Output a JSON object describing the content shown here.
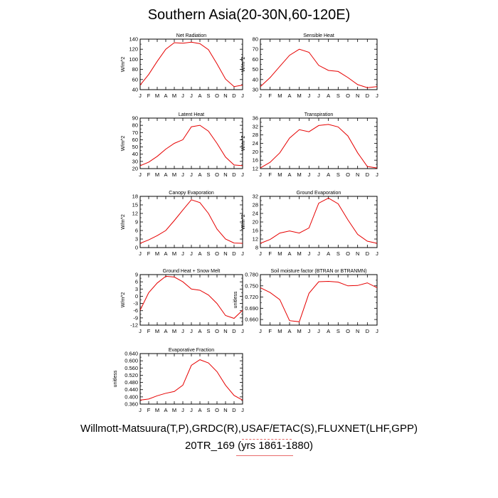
{
  "title": "Southern Asia(20-30N,60-120E)",
  "footer": {
    "line1": "Willmott-Matsuura(T,P),GRDC(R),USAF/ETAC(S),FLUXNET(LHF,GPP)",
    "line2": "20TR_169 (yrs 1861-1880)"
  },
  "colors": {
    "line": "#e60000",
    "axis": "#000000"
  },
  "chart_data": [
    {
      "type": "line",
      "title": "Net Radiation",
      "ylabel": "W/m^2",
      "categories": [
        "J",
        "F",
        "M",
        "A",
        "M",
        "J",
        "J",
        "A",
        "S",
        "O",
        "N",
        "D",
        "J"
      ],
      "ylim": [
        40,
        140
      ],
      "yticks": [
        40,
        60,
        80,
        100,
        120,
        140
      ],
      "values": [
        49,
        70,
        96,
        120,
        133,
        132,
        134,
        131,
        119,
        91,
        61,
        46,
        49
      ]
    },
    {
      "type": "line",
      "title": "Sensible Heat",
      "ylabel": "W/m^2",
      "categories": [
        "J",
        "F",
        "M",
        "A",
        "M",
        "J",
        "J",
        "A",
        "S",
        "O",
        "N",
        "D",
        "J"
      ],
      "ylim": [
        30,
        80
      ],
      "yticks": [
        30,
        40,
        50,
        60,
        70,
        80
      ],
      "values": [
        33,
        42,
        53,
        64,
        70,
        67,
        54,
        49,
        48,
        42,
        35,
        32,
        33
      ]
    },
    {
      "type": "line",
      "title": "Latent Heat",
      "ylabel": "W/m^2",
      "categories": [
        "J",
        "F",
        "M",
        "A",
        "M",
        "J",
        "J",
        "A",
        "S",
        "O",
        "N",
        "D",
        "J"
      ],
      "ylim": [
        20,
        90
      ],
      "yticks": [
        20,
        30,
        40,
        50,
        60,
        70,
        80,
        90
      ],
      "values": [
        24,
        29,
        37,
        47,
        55,
        60,
        78,
        80,
        72,
        55,
        36,
        25,
        24
      ]
    },
    {
      "type": "line",
      "title": "Transpiration",
      "ylabel": "W/m^2",
      "categories": [
        "J",
        "F",
        "M",
        "A",
        "M",
        "J",
        "J",
        "A",
        "S",
        "O",
        "N",
        "D",
        "J"
      ],
      "ylim": [
        12,
        36
      ],
      "yticks": [
        12,
        16,
        20,
        24,
        28,
        32,
        36
      ],
      "values": [
        12.3,
        15,
        19.5,
        26.5,
        30.5,
        29.5,
        32.5,
        33,
        31.8,
        27.5,
        19.5,
        13,
        12.3
      ]
    },
    {
      "type": "line",
      "title": "Canopy Evaporation",
      "ylabel": "W/m^2",
      "categories": [
        "J",
        "F",
        "M",
        "A",
        "M",
        "J",
        "J",
        "A",
        "S",
        "O",
        "N",
        "D",
        "J"
      ],
      "ylim": [
        0,
        18
      ],
      "yticks": [
        0,
        3,
        6,
        9,
        12,
        15,
        18
      ],
      "values": [
        1.5,
        2.7,
        4.2,
        6,
        9.5,
        13.2,
        16.8,
        15.8,
        12,
        6.5,
        3,
        1.6,
        1.5
      ]
    },
    {
      "type": "line",
      "title": "Ground Evaporation",
      "ylabel": "W/m^2",
      "categories": [
        "J",
        "F",
        "M",
        "A",
        "M",
        "J",
        "J",
        "A",
        "S",
        "O",
        "N",
        "D",
        "J"
      ],
      "ylim": [
        8,
        32
      ],
      "yticks": [
        8,
        12,
        16,
        20,
        24,
        28,
        32
      ],
      "values": [
        10,
        11.8,
        14.8,
        15.8,
        14.8,
        17.2,
        28.8,
        31.2,
        28.5,
        21,
        14.2,
        11,
        10
      ]
    },
    {
      "type": "line",
      "title": "Ground Heat + Snow Melt",
      "ylabel": "W/m^2",
      "categories": [
        "J",
        "F",
        "M",
        "A",
        "M",
        "J",
        "J",
        "A",
        "S",
        "O",
        "N",
        "D",
        "J"
      ],
      "ylim": [
        -12,
        9
      ],
      "yticks": [
        -12,
        -9,
        -6,
        -3,
        0,
        3,
        6,
        9
      ],
      "values": [
        -5.8,
        1.5,
        5.5,
        8.3,
        8.0,
        6,
        3,
        2.5,
        0.5,
        -3,
        -8,
        -9.2,
        -5.8
      ]
    },
    {
      "type": "line",
      "title": "Soil moisture factor (BTRAN or BTRANMN)",
      "ylabel": "unitless",
      "categories": [
        "J",
        "F",
        "M",
        "A",
        "M",
        "J",
        "J",
        "A",
        "S",
        "O",
        "N",
        "D",
        "J"
      ],
      "ylim": [
        0.645,
        0.78
      ],
      "yticks": [
        0.66,
        0.69,
        0.72,
        0.75,
        0.78
      ],
      "ytick_labels": [
        "0.660",
        "0.690",
        "0.720",
        "0.750",
        "0.780"
      ],
      "values": [
        0.745,
        0.732,
        0.713,
        0.657,
        0.654,
        0.73,
        0.761,
        0.762,
        0.76,
        0.75,
        0.751,
        0.758,
        0.745
      ]
    },
    {
      "type": "line",
      "title": "Evaporative Fraction",
      "ylabel": "unitless",
      "categories": [
        "J",
        "F",
        "M",
        "A",
        "M",
        "J",
        "J",
        "A",
        "S",
        "O",
        "N",
        "D",
        "J"
      ],
      "ylim": [
        0.36,
        0.64
      ],
      "yticks": [
        0.36,
        0.4,
        0.44,
        0.48,
        0.52,
        0.56,
        0.6,
        0.64
      ],
      "ytick_labels": [
        "0.360",
        "0.400",
        "0.440",
        "0.480",
        "0.520",
        "0.560",
        "0.600",
        "0.640"
      ],
      "values": [
        0.382,
        0.388,
        0.406,
        0.42,
        0.43,
        0.465,
        0.575,
        0.606,
        0.588,
        0.54,
        0.465,
        0.408,
        0.382
      ]
    }
  ]
}
